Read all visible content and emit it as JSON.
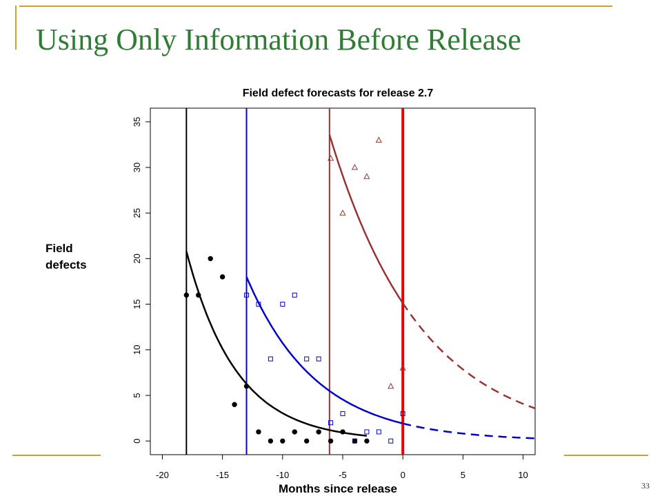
{
  "slide": {
    "title": "Using Only Information Before Release",
    "page_number": "33"
  },
  "colors": {
    "title": "#2e7d32",
    "accent_lines": "#c9a227",
    "series_black": "#000000",
    "series_blue": "#0000cc",
    "series_brown": "#993333",
    "release_line": "#ee0000"
  },
  "chart_data": {
    "type": "scatter",
    "title": "Field defect forecasts for release 2.7",
    "xlabel": "Months since release",
    "ylabel": "Field defects",
    "xlim": [
      -21,
      11
    ],
    "ylim": [
      -1.5,
      36.5
    ],
    "xticks": [
      -20,
      -15,
      -10,
      -5,
      0,
      5,
      10
    ],
    "yticks": [
      0,
      5,
      10,
      15,
      20,
      25,
      30,
      35
    ],
    "release_line_x": 0,
    "series": [
      {
        "color": "#000000",
        "marker": "filled-circle",
        "start_x": -18,
        "points": [
          [
            -18,
            16
          ],
          [
            -17,
            16
          ],
          [
            -16,
            20
          ],
          [
            -15,
            18
          ],
          [
            -13,
            6
          ],
          [
            -14,
            4
          ],
          [
            -12,
            1
          ],
          [
            -11,
            0
          ],
          [
            -10,
            0
          ],
          [
            -9,
            1
          ],
          [
            -8,
            0
          ],
          [
            -7,
            1
          ],
          [
            -6,
            0
          ],
          [
            -5,
            1
          ],
          [
            -4,
            0
          ],
          [
            -3,
            0
          ]
        ],
        "fit": {
          "x0": -18,
          "y0": 20.8,
          "rate": 0.24,
          "x_end": -3,
          "x_solid_end": -3
        }
      },
      {
        "color": "#0000cc",
        "marker": "open-square",
        "start_x": -13,
        "points": [
          [
            -13,
            16
          ],
          [
            -12,
            15
          ],
          [
            -11,
            9
          ],
          [
            -10,
            15
          ],
          [
            -9,
            16
          ],
          [
            -8,
            9
          ],
          [
            -7,
            9
          ],
          [
            -6,
            2
          ],
          [
            -5,
            3
          ],
          [
            -4,
            0
          ],
          [
            -3,
            1
          ],
          [
            -2,
            1
          ],
          [
            -1,
            0
          ],
          [
            0,
            3
          ]
        ],
        "fit": {
          "x0": -13,
          "y0": 18,
          "rate": 0.172,
          "x_end": 11,
          "x_solid_end": 0
        }
      },
      {
        "color": "#993333",
        "marker": "open-triangle",
        "start_x": -6.1,
        "points": [
          [
            -6,
            31
          ],
          [
            -5,
            25
          ],
          [
            -4,
            30
          ],
          [
            -3,
            29
          ],
          [
            -2,
            33
          ],
          [
            -1,
            6
          ],
          [
            0,
            8
          ]
        ],
        "fit": {
          "x0": -6.1,
          "y0": 33.6,
          "rate": 0.131,
          "x_end": 11,
          "x_solid_end": 0
        }
      }
    ]
  }
}
